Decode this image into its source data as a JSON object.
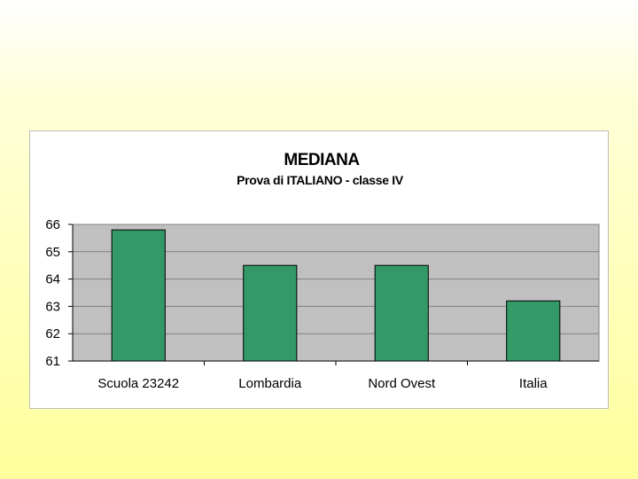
{
  "chart_data": {
    "type": "bar",
    "title": "MEDIANA",
    "subtitle": "Prova di ITALIANO - classe IV",
    "xlabel": "",
    "ylabel": "",
    "categories": [
      "Scuola 23242",
      "Lombardia",
      "Nord Ovest",
      "Italia"
    ],
    "values": [
      65.8,
      64.5,
      64.5,
      63.2
    ],
    "ylim": [
      61,
      66
    ],
    "yticks": [
      61,
      62,
      63,
      64,
      65,
      66
    ],
    "grid": true,
    "legend": "none",
    "colors": {
      "bar_fill": "#339966",
      "bar_stroke": "#000000",
      "plot_background": "#c0c0c0",
      "gridline": "#808080"
    }
  }
}
